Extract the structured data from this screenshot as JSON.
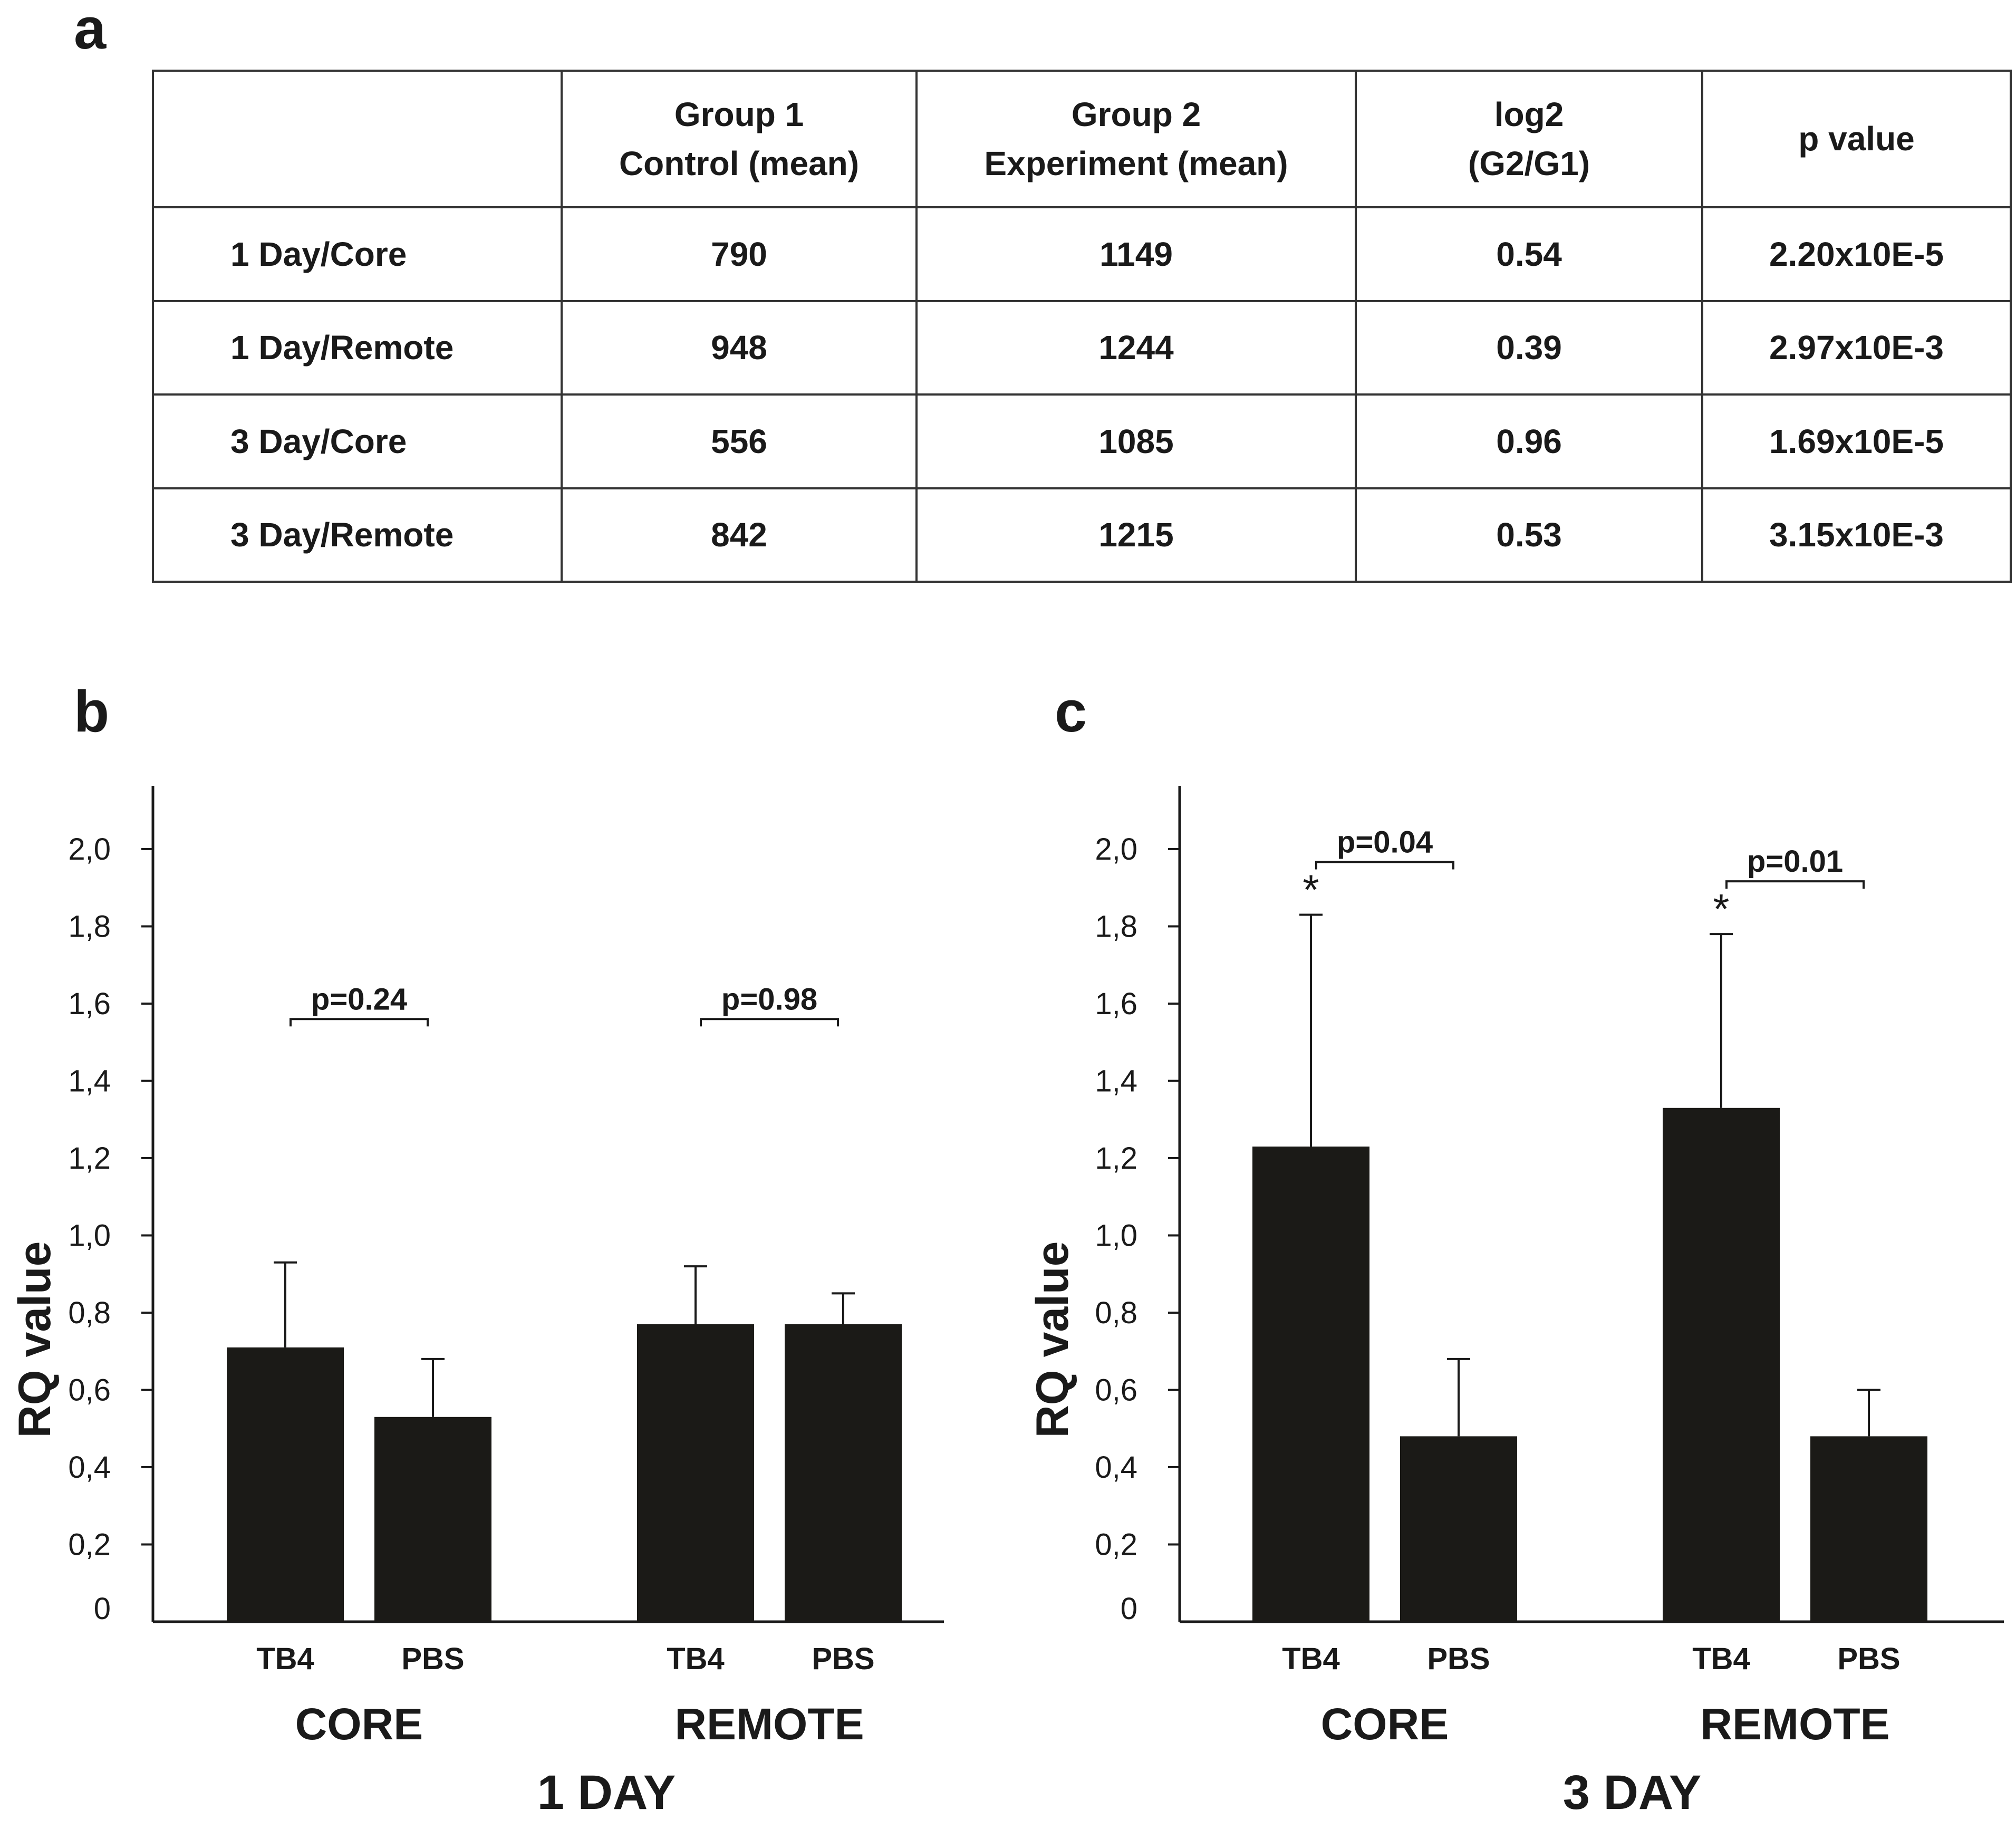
{
  "panels": {
    "a": "a",
    "b": "b",
    "c": "c"
  },
  "table": {
    "headers": [
      "",
      [
        "Group 1",
        "Control (mean)"
      ],
      [
        "Group 2",
        "Experiment (mean)"
      ],
      [
        "log2",
        "(G2/G1)"
      ],
      [
        "p value"
      ]
    ],
    "rows": [
      [
        "1 Day/Core",
        "790",
        "1149",
        "0.54",
        "2.20x10E-5"
      ],
      [
        "1 Day/Remote",
        "948",
        "1244",
        "0.39",
        "2.97x10E-3"
      ],
      [
        "3 Day/Core",
        "556",
        "1085",
        "0.96",
        "1.69x10E-5"
      ],
      [
        "3 Day/Remote",
        "842",
        "1215",
        "0.53",
        "3.15x10E-3"
      ]
    ]
  },
  "chart_data": [
    {
      "type": "bar",
      "panel": "b",
      "title": "1 DAY",
      "ylabel": "RQ value",
      "ylim": [
        0,
        2.1
      ],
      "yticks": [
        "0",
        "0,2",
        "0,4",
        "0,6",
        "0,8",
        "1,0",
        "1,2",
        "1,4",
        "1,6",
        "1,8",
        "2,0"
      ],
      "groups": [
        {
          "name": "CORE",
          "bars": [
            {
              "label": "TB4",
              "value": 0.71,
              "error": 0.22
            },
            {
              "label": "PBS",
              "value": 0.53,
              "error": 0.15
            }
          ],
          "pvalue": "p=0.24",
          "stars": [
            "",
            ""
          ]
        },
        {
          "name": "REMOTE",
          "bars": [
            {
              "label": "TB4",
              "value": 0.77,
              "error": 0.15
            },
            {
              "label": "PBS",
              "value": 0.77,
              "error": 0.08
            }
          ],
          "pvalue": "p=0.98",
          "stars": [
            "",
            ""
          ]
        }
      ]
    },
    {
      "type": "bar",
      "panel": "c",
      "title": "3 DAY",
      "ylabel": "RQ value",
      "ylim": [
        0,
        2.1
      ],
      "yticks": [
        "0",
        "0,2",
        "0,4",
        "0,6",
        "0,8",
        "1,0",
        "1,2",
        "1,4",
        "1,6",
        "1,8",
        "2,0"
      ],
      "groups": [
        {
          "name": "CORE",
          "bars": [
            {
              "label": "TB4",
              "value": 1.23,
              "error": 0.6
            },
            {
              "label": "PBS",
              "value": 0.48,
              "error": 0.2
            }
          ],
          "pvalue": "p=0.04",
          "stars": [
            "*",
            ""
          ]
        },
        {
          "name": "REMOTE",
          "bars": [
            {
              "label": "TB4",
              "value": 1.33,
              "error": 0.45
            },
            {
              "label": "PBS",
              "value": 0.48,
              "error": 0.12
            }
          ],
          "pvalue": "p=0.01",
          "stars": [
            "*",
            ""
          ]
        }
      ]
    }
  ]
}
